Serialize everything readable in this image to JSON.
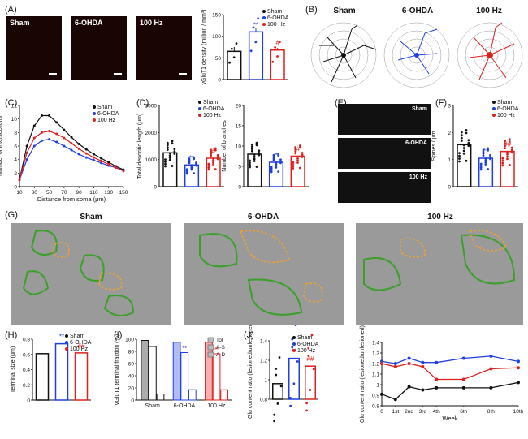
{
  "labels": {
    "A": "(A)",
    "B": "(B)",
    "C": "(C)",
    "D": "(D)",
    "E": "(E)",
    "F": "(F)",
    "G": "(G)",
    "H": "(H)",
    "I": "(I)",
    "J": "(J)"
  },
  "groups": [
    "Sham",
    "6-OHDA",
    "100 Hz"
  ],
  "colors": {
    "sham": "#111111",
    "ohda": "#1f3fe0",
    "hz": "#e0201e"
  },
  "panelE": {
    "labels": [
      "Sham",
      "6-OHDA",
      "100 Hz"
    ]
  },
  "chart_data": [
    {
      "id": "A",
      "type": "bar",
      "categories": [
        "Sham",
        "6-OHDA",
        "100 Hz"
      ],
      "values": [
        65,
        110,
        68
      ],
      "errors": [
        10,
        9,
        5
      ],
      "ylabel": "vGluT1 density (million / mm³)",
      "ylim": [
        0,
        150
      ],
      "yticks": [
        0,
        50,
        100,
        150
      ],
      "marks": [
        "",
        "**",
        "#"
      ],
      "legend": [
        "Sham",
        "6-OHDA",
        "100 Hz"
      ]
    },
    {
      "id": "C",
      "type": "line",
      "x": [
        10,
        20,
        30,
        40,
        50,
        60,
        70,
        80,
        90,
        100,
        110,
        120,
        130,
        140,
        150
      ],
      "xticks": [
        10,
        30,
        50,
        70,
        90,
        110,
        130,
        150
      ],
      "ylim": [
        0,
        12
      ],
      "yticks": [
        0,
        2,
        4,
        6,
        8,
        10,
        12
      ],
      "xlabel": "Distance from soma (μm)",
      "ylabel": "Number of intersections",
      "series": [
        {
          "name": "Sham",
          "values": [
            1,
            6,
            9,
            10.5,
            10.5,
            9.5,
            8.4,
            7.3,
            6.3,
            5.5,
            4.8,
            4.2,
            3.6,
            3.0,
            2.5
          ]
        },
        {
          "name": "6-OHDA",
          "values": [
            1,
            4,
            6,
            6.8,
            7,
            6.6,
            6,
            5.4,
            4.8,
            4.3,
            3.9,
            3.5,
            3.1,
            2.8,
            2.4
          ]
        },
        {
          "name": "100 Hz",
          "values": [
            1,
            5,
            7.2,
            8,
            8.2,
            7.8,
            7.2,
            6.4,
            5.6,
            4.9,
            4.3,
            3.8,
            3.3,
            2.8,
            2.3
          ]
        }
      ]
    },
    {
      "id": "D1",
      "type": "bar",
      "categories": [
        "Sham",
        "6-OHDA",
        "100 Hz"
      ],
      "values": [
        1250,
        800,
        1050
      ],
      "ylabel": "Total dendritic length (μm)",
      "ylim": [
        0,
        3000
      ],
      "yticks": [
        0,
        1000,
        2000,
        3000
      ],
      "marks": [
        "",
        "**",
        "#"
      ],
      "legend": [
        "Sham",
        "6-OHDA",
        "100 Hz"
      ]
    },
    {
      "id": "D2",
      "type": "bar",
      "categories": [
        "Sham",
        "6-OHDA",
        "100 Hz"
      ],
      "values": [
        8,
        6,
        7.5
      ],
      "ylabel": "Number of branches",
      "ylim": [
        0,
        20
      ],
      "yticks": [
        0,
        5,
        10,
        15,
        20
      ],
      "marks": [
        "",
        "*",
        "#"
      ]
    },
    {
      "id": "F",
      "type": "bar",
      "categories": [
        "Sham",
        "6-OHDA",
        "100 Hz"
      ],
      "values": [
        1.55,
        1.05,
        1.3
      ],
      "ylabel": "Spines / μm",
      "ylim": [
        0,
        3
      ],
      "yticks": [
        0,
        1,
        2,
        3
      ],
      "marks": [
        "",
        "**",
        "##\n*"
      ],
      "legend": [
        "Sham",
        "6-OHDA",
        "100 Hz"
      ]
    },
    {
      "id": "H",
      "type": "bar",
      "categories": [
        "Sham",
        "6-OHDA",
        "100 Hz"
      ],
      "values": [
        0.61,
        0.74,
        0.62
      ],
      "ylabel": "Terminal size (μm)",
      "ylim": [
        0,
        0.8
      ],
      "yticks": [
        0.0,
        0.2,
        0.4,
        0.6,
        0.8
      ],
      "marks": [
        "",
        "**",
        "##"
      ],
      "legend": [
        "Sham",
        "6-OHDA",
        "100 Hz"
      ]
    },
    {
      "id": "I",
      "type": "bar",
      "categories": [
        "Sham",
        "6-OHDA",
        "100 Hz"
      ],
      "series": [
        {
          "name": "Tot",
          "values": [
            98,
            95,
            95
          ]
        },
        {
          "name": "A-S",
          "values": [
            88,
            78,
            76
          ]
        },
        {
          "name": "A-D",
          "values": [
            10,
            17,
            17
          ]
        }
      ],
      "ylabel": "vGluT1 terminal fraction (%)",
      "ylim": [
        0,
        100
      ],
      "yticks": [
        0,
        20,
        40,
        60,
        80,
        100
      ],
      "marks": [
        "",
        "**",
        "**"
      ]
    },
    {
      "id": "J1",
      "type": "bar",
      "categories": [
        "Sham",
        "6-OHDA",
        "100 Hz"
      ],
      "values": [
        0.96,
        1.22,
        1.14
      ],
      "ylabel": "Glu content ratio (lesioned/unlesioned)",
      "ylim": [
        0.8,
        1.4
      ],
      "yticks": [
        0.8,
        1.0,
        1.2,
        1.4
      ],
      "marks": [
        "",
        "**",
        "##"
      ],
      "legend": [
        "Sham",
        "6-OHDA",
        "100 Hz"
      ]
    },
    {
      "id": "J2",
      "type": "line",
      "x": [
        0,
        1,
        2,
        3,
        4,
        6,
        8,
        10
      ],
      "xticks": [
        "0",
        "1st",
        "2nd",
        "3rd",
        "4th",
        "6th",
        "8th",
        "10th"
      ],
      "xlabel": "Week",
      "ylabel": "Glu content ratio (lesioned/unlesioned)",
      "ylim": [
        0.8,
        1.4
      ],
      "yticks": [
        0.8,
        0.9,
        1.0,
        1.1,
        1.2,
        1.3,
        1.4
      ],
      "series": [
        {
          "name": "Sham",
          "values": [
            0.91,
            0.86,
            0.98,
            0.95,
            0.97,
            0.97,
            0.97,
            1.02
          ]
        },
        {
          "name": "6-OHDA",
          "values": [
            1.22,
            1.2,
            1.25,
            1.21,
            1.21,
            1.25,
            1.27,
            1.22
          ]
        },
        {
          "name": "100 Hz",
          "values": [
            1.2,
            1.17,
            1.2,
            1.17,
            1.05,
            1.05,
            1.15,
            1.16
          ]
        }
      ]
    }
  ]
}
